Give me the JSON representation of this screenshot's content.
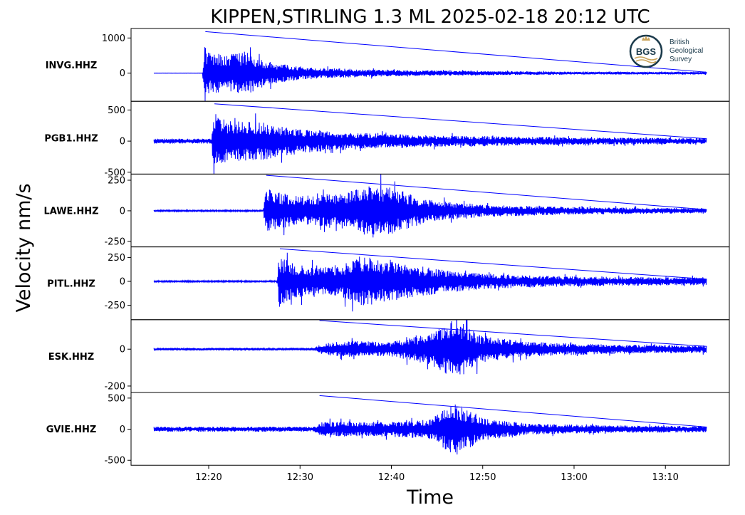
{
  "chart_data": {
    "type": "line",
    "title": "KIPPEN,STIRLING 1.3 ML   2025-02-18 20:12 UTC",
    "xlabel": "Time",
    "ylabel": "Velocity nm/s",
    "x_range": [
      "12:11:30",
      "13:17:00"
    ],
    "x_ticks": [
      "12:20",
      "12:30",
      "12:40",
      "12:50",
      "13:00",
      "13:10"
    ],
    "line_color": "#0000ff",
    "logo": {
      "text_lines": [
        "British",
        "Geological",
        "Survey"
      ],
      "badge": "BGS",
      "color": "#1b3a4b"
    },
    "panels": [
      {
        "station": "INVG.HHZ",
        "ylim": [
          -800,
          1270
        ],
        "yticks": [
          {
            "v": 1000,
            "t": "1000"
          },
          {
            "v": 0,
            "t": "0"
          }
        ],
        "onset_time": "12:19:30",
        "peak_velocity": 1180,
        "envelope": [
          [
            "12:14:00",
            5
          ],
          [
            "12:19:20",
            5
          ],
          [
            "12:19:30",
            900
          ],
          [
            "12:20:00",
            600
          ],
          [
            "12:22:00",
            500
          ],
          [
            "12:24:00",
            650
          ],
          [
            "12:26:00",
            400
          ],
          [
            "12:28:00",
            260
          ],
          [
            "12:32:00",
            150
          ],
          [
            "12:40:00",
            90
          ],
          [
            "12:50:00",
            60
          ],
          [
            "13:00:00",
            40
          ],
          [
            "13:14:30",
            30
          ]
        ]
      },
      {
        "station": "PGB1.HHZ",
        "ylim": [
          -530,
          640
        ],
        "yticks": [
          {
            "v": 500,
            "t": "500"
          },
          {
            "v": 0,
            "t": "0"
          },
          {
            "v": -500,
            "t": "-500"
          }
        ],
        "onset_time": "12:20:30",
        "peak_velocity": 600,
        "envelope": [
          [
            "12:14:00",
            40
          ],
          [
            "12:20:20",
            40
          ],
          [
            "12:20:30",
            480
          ],
          [
            "12:22:00",
            330
          ],
          [
            "12:26:00",
            300
          ],
          [
            "12:30:00",
            200
          ],
          [
            "12:35:00",
            140
          ],
          [
            "12:45:00",
            90
          ],
          [
            "13:00:00",
            60
          ],
          [
            "13:14:30",
            45
          ]
        ]
      },
      {
        "station": "LAWE.HHZ",
        "ylim": [
          -295,
          300
        ],
        "yticks": [
          {
            "v": 250,
            "t": "250"
          },
          {
            "v": 0,
            "t": "0"
          },
          {
            "v": -250,
            "t": "-250"
          }
        ],
        "onset_time": "12:26:10",
        "peak_velocity": 290,
        "envelope": [
          [
            "12:14:00",
            6
          ],
          [
            "12:26:00",
            6
          ],
          [
            "12:26:10",
            180
          ],
          [
            "12:30:00",
            120
          ],
          [
            "12:35:00",
            150
          ],
          [
            "12:38:00",
            220
          ],
          [
            "12:41:00",
            170
          ],
          [
            "12:44:00",
            90
          ],
          [
            "12:50:00",
            50
          ],
          [
            "13:00:00",
            30
          ],
          [
            "13:14:30",
            20
          ]
        ]
      },
      {
        "station": "PITL.HHZ",
        "ylim": [
          -400,
          360
        ],
        "yticks": [
          {
            "v": 250,
            "t": "250"
          },
          {
            "v": 0,
            "t": "0"
          },
          {
            "v": -250,
            "t": "-250"
          }
        ],
        "onset_time": "12:27:40",
        "peak_velocity": 340,
        "envelope": [
          [
            "12:14:00",
            8
          ],
          [
            "12:27:30",
            8
          ],
          [
            "12:27:40",
            260
          ],
          [
            "12:30:00",
            170
          ],
          [
            "12:34:00",
            150
          ],
          [
            "12:37:00",
            260
          ],
          [
            "12:41:00",
            190
          ],
          [
            "12:45:00",
            130
          ],
          [
            "12:50:00",
            80
          ],
          [
            "13:00:00",
            50
          ],
          [
            "13:14:30",
            40
          ]
        ]
      },
      {
        "station": "ESK.HHZ",
        "ylim": [
          -235,
          160
        ],
        "yticks": [
          {
            "v": 0,
            "t": "0"
          },
          {
            "v": -200,
            "t": "-200"
          }
        ],
        "onset_time": "12:32:00",
        "peak_velocity": 225,
        "envelope": [
          [
            "12:14:00",
            7
          ],
          [
            "12:31:30",
            7
          ],
          [
            "12:32:30",
            30
          ],
          [
            "12:35:00",
            45
          ],
          [
            "12:40:00",
            40
          ],
          [
            "12:44:00",
            80
          ],
          [
            "12:47:00",
            170
          ],
          [
            "12:50:00",
            70
          ],
          [
            "12:55:00",
            40
          ],
          [
            "13:05:00",
            25
          ],
          [
            "13:14:30",
            20
          ]
        ]
      },
      {
        "station": "GVIE.HHZ",
        "ylim": [
          -580,
          590
        ],
        "yticks": [
          {
            "v": 500,
            "t": "500"
          },
          {
            "v": 0,
            "t": "0"
          },
          {
            "v": -500,
            "t": "-500"
          }
        ],
        "onset_time": "12:32:00",
        "peak_velocity": 540,
        "envelope": [
          [
            "12:14:00",
            40
          ],
          [
            "12:31:30",
            40
          ],
          [
            "12:32:30",
            120
          ],
          [
            "12:38:00",
            110
          ],
          [
            "12:44:00",
            150
          ],
          [
            "12:47:00",
            430
          ],
          [
            "12:50:00",
            180
          ],
          [
            "12:55:00",
            90
          ],
          [
            "13:05:00",
            60
          ],
          [
            "13:14:30",
            50
          ]
        ]
      }
    ]
  }
}
